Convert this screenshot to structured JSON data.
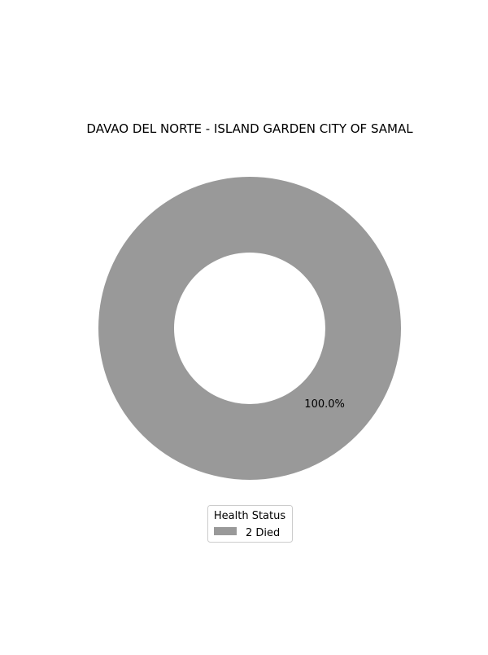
{
  "chart_data": {
    "type": "pie",
    "variant": "donut",
    "title": "DAVAO DEL NORTE - ISLAND GARDEN CITY OF SAMAL",
    "slices": [
      {
        "label": "2  Died",
        "value": 2,
        "percent_label": "100.0%",
        "color": "#999999"
      }
    ],
    "legend": {
      "title": "Health Status",
      "placement": "bottom-center"
    }
  }
}
